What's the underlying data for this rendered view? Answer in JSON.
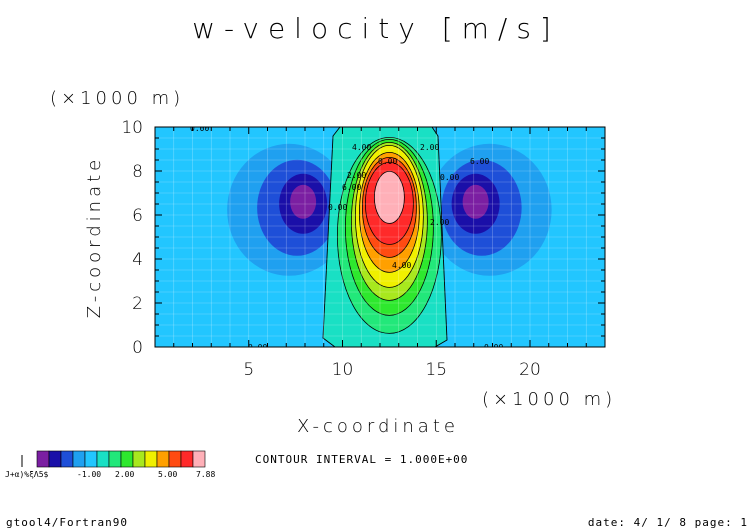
{
  "chart_data": {
    "type": "heatmap",
    "title": "w-velocity [m/s]",
    "xlabel": "X-coordinate",
    "ylabel": "Z-coordinate",
    "x_unit": "(×1000 m)",
    "y_unit": "(×1000 m)",
    "xlim": [
      0,
      24
    ],
    "ylim": [
      0,
      10
    ],
    "x_ticks": [
      "5",
      "10",
      "15",
      "20"
    ],
    "y_ticks": [
      "0",
      "2",
      "4",
      "6",
      "8",
      "10"
    ],
    "contour_interval": "CONTOUR INTERVAL = 1.000E+00",
    "contour_labels": [
      "0.00",
      "0.00",
      "0.00",
      "0.00",
      "0.00",
      "0.00",
      "6.00",
      "6.00",
      "2.00",
      "4.00",
      "2.00",
      "4.00",
      "2.00"
    ],
    "colorbar": {
      "labels": [
        "-1.00",
        "2.00",
        "5.00",
        "7.88"
      ],
      "colors": [
        "#7b1fa2",
        "#1a0fa8",
        "#1e4fd8",
        "#1fa0f0",
        "#22c6ff",
        "#19e0c4",
        "#22e87a",
        "#2ee82e",
        "#a8e81e",
        "#f0f000",
        "#ffa000",
        "#ff4b12",
        "#ff2a2a",
        "#ffb0b8"
      ]
    },
    "field": {
      "background": 0.0,
      "updraft": {
        "x": 12.5,
        "z": 6.8,
        "peak": 7.88
      },
      "downdrafts": [
        {
          "x": 7.9,
          "z": 6.6,
          "min": -0.95
        },
        {
          "x": 17.1,
          "z": 6.6,
          "min": -0.95
        }
      ]
    }
  },
  "footer": {
    "left": "gtool4/Fortran90",
    "right": "date: 4/ 1/ 8 page: 1",
    "colorbar_tag": "J+α)%ξΛ5$"
  }
}
